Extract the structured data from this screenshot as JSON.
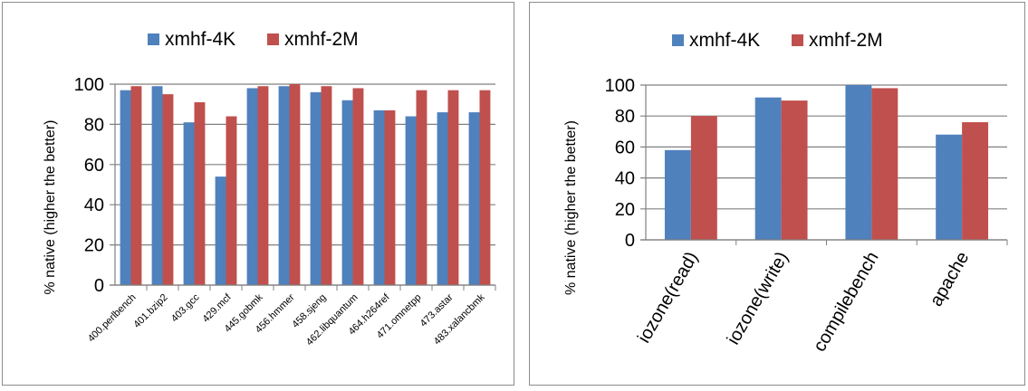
{
  "colors": {
    "series_4k": "#4f81bd",
    "series_2m": "#c0504d",
    "axis": "#808080",
    "grid": "#808080"
  },
  "chart_data": [
    {
      "type": "bar",
      "title": "",
      "xlabel": "",
      "ylabel": "% native (higher the better)",
      "ylim": [
        0,
        100
      ],
      "yticks": [
        0,
        20,
        40,
        60,
        80,
        100
      ],
      "ytick_labels": [
        "0",
        "20",
        "40",
        "60",
        "80",
        "100"
      ],
      "grid": true,
      "legend_position": "top",
      "categories": [
        "400.perlbench",
        "401.bzip2",
        "403.gcc",
        "429.mcf",
        "445.gobmk",
        "456.hmmer",
        "458.sjeng",
        "462.libquantum",
        "464.h264ref",
        "471.omnetpp",
        "473.astar",
        "483.xalancbmk"
      ],
      "series": [
        {
          "name": "xmhf-4K",
          "values": [
            97,
            99,
            81,
            54,
            98,
            99,
            96,
            92,
            87,
            84,
            86,
            86
          ]
        },
        {
          "name": "xmhf-2M",
          "values": [
            99,
            95,
            91,
            84,
            99,
            100,
            99,
            98,
            87,
            97,
            97,
            97
          ]
        }
      ]
    },
    {
      "type": "bar",
      "title": "",
      "xlabel": "",
      "ylabel": "% native (higher the better)",
      "ylim": [
        0,
        100
      ],
      "yticks": [
        0,
        20,
        40,
        60,
        80,
        100
      ],
      "ytick_labels": [
        "0",
        "20",
        "40",
        "60",
        "80",
        "100"
      ],
      "grid": true,
      "legend_position": "top",
      "categories": [
        "iozone(read)",
        "iozone(write)",
        "compilebench",
        "apache"
      ],
      "series": [
        {
          "name": "xmhf-4K",
          "values": [
            58,
            92,
            100,
            68
          ]
        },
        {
          "name": "xmhf-2M",
          "values": [
            80,
            90,
            98,
            76
          ]
        }
      ]
    }
  ]
}
